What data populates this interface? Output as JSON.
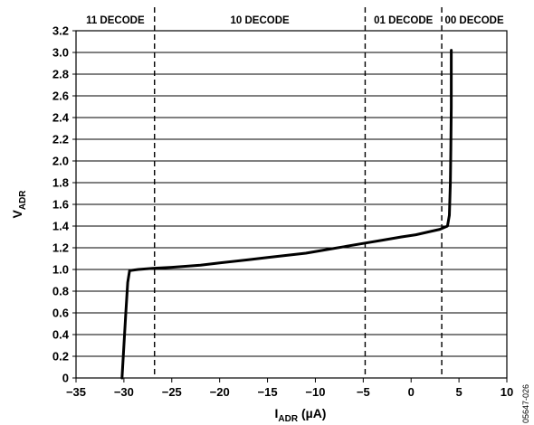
{
  "chart_data": {
    "type": "line",
    "xlabel": {
      "main": "I",
      "sub": "ADR",
      "unit": " (µA)"
    },
    "ylabel": {
      "main": "V",
      "sub": "ADR"
    },
    "xlim": [
      -35,
      10
    ],
    "ylim": [
      0,
      3.2
    ],
    "x_ticks": [
      -35,
      -30,
      -25,
      -20,
      -15,
      -10,
      -5,
      0,
      5,
      10
    ],
    "x_tick_labels": [
      "−35",
      "−30",
      "−25",
      "−20",
      "−15",
      "−10",
      "−5",
      "0",
      "5",
      "10"
    ],
    "y_ticks": [
      0,
      0.2,
      0.4,
      0.6,
      0.8,
      1.0,
      1.2,
      1.4,
      1.6,
      1.8,
      2.0,
      2.2,
      2.4,
      2.6,
      2.8,
      3.0,
      3.2
    ],
    "y_tick_labels": [
      "0",
      "0.2",
      "0.4",
      "0.6",
      "0.8",
      "1.0",
      "1.2",
      "1.4",
      "1.6",
      "1.8",
      "2.0",
      "2.2",
      "2.4",
      "2.6",
      "2.8",
      "3.0",
      "3.2"
    ],
    "grid": "horizontal",
    "boundaries": [
      -26.8,
      -4.8,
      3.2
    ],
    "regions": [
      {
        "label": "11 DECODE",
        "x_range": [
          -35,
          -26.8
        ]
      },
      {
        "label": "10 DECODE",
        "x_range": [
          -26.8,
          -4.8
        ]
      },
      {
        "label": "01 DECODE",
        "x_range": [
          -4.8,
          3.2
        ]
      },
      {
        "label": "00 DECODE",
        "x_range": [
          3.2,
          10
        ]
      }
    ],
    "series": [
      {
        "points": [
          [
            -30.2,
            0.0
          ],
          [
            -30.0,
            0.3
          ],
          [
            -29.8,
            0.6
          ],
          [
            -29.6,
            0.88
          ],
          [
            -29.4,
            0.99
          ],
          [
            -28.5,
            1.0
          ],
          [
            -27.0,
            1.01
          ],
          [
            -25.0,
            1.02
          ],
          [
            -22.0,
            1.04
          ],
          [
            -20.0,
            1.06
          ],
          [
            -17.0,
            1.09
          ],
          [
            -15.0,
            1.11
          ],
          [
            -13.0,
            1.13
          ],
          [
            -11.0,
            1.15
          ],
          [
            -9.0,
            1.18
          ],
          [
            -7.0,
            1.21
          ],
          [
            -5.0,
            1.24
          ],
          [
            -3.0,
            1.27
          ],
          [
            -1.0,
            1.3
          ],
          [
            0.5,
            1.32
          ],
          [
            2.0,
            1.35
          ],
          [
            3.0,
            1.37
          ],
          [
            3.8,
            1.4
          ],
          [
            4.0,
            1.5
          ],
          [
            4.1,
            1.8
          ],
          [
            4.15,
            2.1
          ],
          [
            4.2,
            2.5
          ],
          [
            4.2,
            3.02
          ]
        ],
        "color": "#000000"
      }
    ]
  },
  "figure_code": "05647-026"
}
